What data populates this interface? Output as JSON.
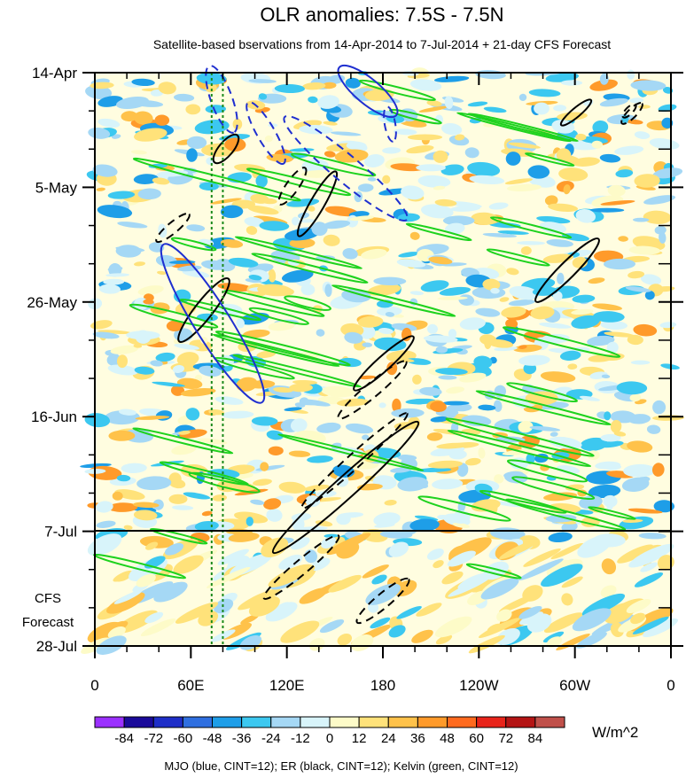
{
  "chart_data": {
    "type": "heatmap",
    "title": "OLR anomalies: 7.5S - 7.5N",
    "subtitle": "Satellite-based bservations from 14-Apr-2014 to 7-Jul-2014 + 21-day CFS Forecast",
    "x_ticks": [
      "0",
      "60E",
      "120E",
      "180",
      "120W",
      "60W",
      "0"
    ],
    "x_tick_lons": [
      0,
      60,
      120,
      180,
      240,
      300,
      360
    ],
    "y_ticks": [
      "14-Apr",
      "5-May",
      "26-May",
      "16-Jun",
      "7-Jul",
      "28-Jul"
    ],
    "y_tick_days": [
      0,
      21,
      42,
      63,
      84,
      105
    ],
    "observation_end_day": 84,
    "forecast_label": [
      "CFS",
      "Forecast"
    ],
    "colorbar": {
      "levels": [
        "-84",
        "-72",
        "-60",
        "-48",
        "-36",
        "-24",
        "-12",
        "0",
        "12",
        "24",
        "36",
        "48",
        "60",
        "72",
        "84"
      ],
      "colors": [
        "#9b30ff",
        "#1a0a9a",
        "#1e2ec8",
        "#2f6fe0",
        "#1e9ee8",
        "#3cc8f0",
        "#a5d8f5",
        "#d8f4fa",
        "#fdfbc8",
        "#ffe27a",
        "#ffc24a",
        "#ff9a2a",
        "#ff6a1e",
        "#e8241a",
        "#b41414",
        "#c0504a"
      ],
      "units": "W/m^2"
    },
    "footer": "MJO (blue, CINT=12); ER (black, CINT=12); Kelvin (green, CINT=12)",
    "contour_colors": {
      "mjo": "#1f2fd0",
      "er": "#000000",
      "kelvin": "#1ed21e",
      "reference": "#1a8a1a"
    },
    "reference_lines_lon": [
      73,
      80
    ]
  }
}
